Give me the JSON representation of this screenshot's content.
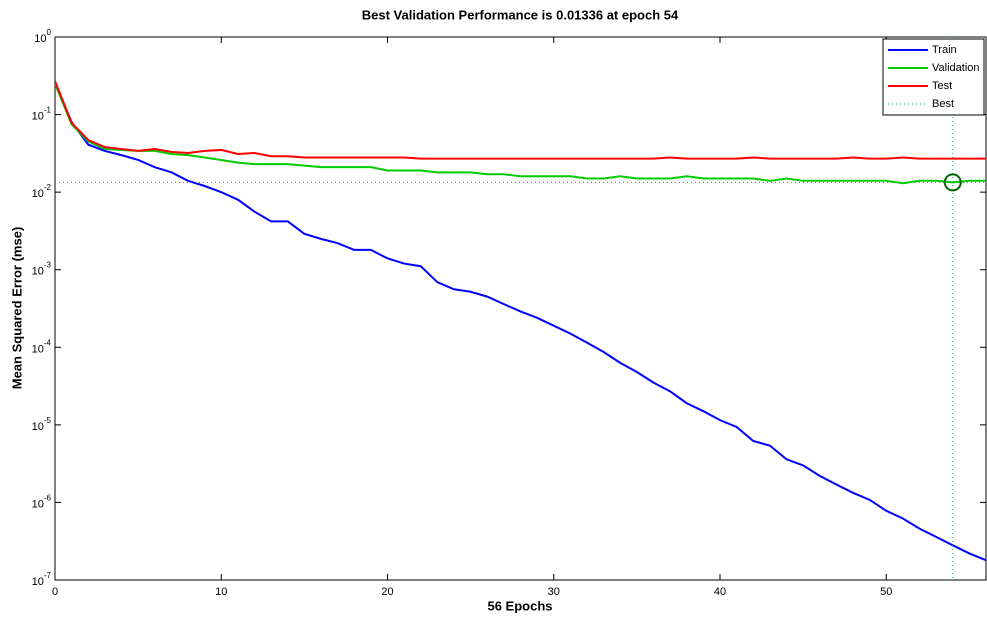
{
  "chart_data": {
    "type": "line",
    "title": "Best Validation Performance is 0.01336 at epoch 54",
    "x_label": "56 Epochs",
    "y_label": "Mean Squared Error  (mse)",
    "log_y": true,
    "legend": "upper right",
    "xlim": [
      0,
      56
    ],
    "ylim": [
      1e-07,
      1
    ],
    "xticks": [
      0,
      10,
      20,
      30,
      40,
      50
    ],
    "yticks": [
      {
        "value": 1e-07,
        "label": "10^-7"
      },
      {
        "value": 1e-06,
        "label": "10^-6"
      },
      {
        "value": 1e-05,
        "label": "10^-5"
      },
      {
        "value": 0.0001,
        "label": "10^-4"
      },
      {
        "value": 0.001,
        "label": "10^-3"
      },
      {
        "value": 0.01,
        "label": "10^-2"
      },
      {
        "value": 0.1,
        "label": "10^-1"
      },
      {
        "value": 1,
        "label": "10^0"
      }
    ],
    "x": [
      0,
      1,
      2,
      3,
      4,
      5,
      6,
      7,
      8,
      9,
      10,
      11,
      12,
      13,
      14,
      15,
      16,
      17,
      18,
      19,
      20,
      21,
      22,
      23,
      24,
      25,
      26,
      27,
      28,
      29,
      30,
      31,
      32,
      33,
      34,
      35,
      36,
      37,
      38,
      39,
      40,
      41,
      42,
      43,
      44,
      45,
      46,
      47,
      48,
      49,
      50,
      51,
      52,
      53,
      54,
      55,
      56
    ],
    "series": [
      {
        "name": "Train",
        "color": "#0000ff",
        "values": [
          0.26,
          0.08,
          0.041,
          0.034,
          0.03,
          0.026,
          0.021,
          0.018,
          0.014,
          0.012,
          0.01,
          0.008,
          0.0056,
          0.0042,
          0.0042,
          0.0029,
          0.0025,
          0.0022,
          0.0018,
          0.0018,
          0.0014,
          0.0012,
          0.00111,
          0.00069,
          0.00056,
          0.00052,
          0.00045,
          0.00036,
          0.00029,
          0.00024,
          0.00019,
          0.00015,
          0.000115,
          8.7e-05,
          6.3e-05,
          4.8e-05,
          3.5e-05,
          2.7e-05,
          1.9e-05,
          1.5e-05,
          1.15e-05,
          9.4e-06,
          6.2e-06,
          5.4e-06,
          3.6e-06,
          3e-06,
          2.2e-06,
          1.7e-06,
          1.33e-06,
          1.08e-06,
          7.8e-07,
          6.2e-07,
          4.6e-07,
          3.6e-07,
          2.8e-07,
          2.2e-07,
          1.8e-07
        ]
      },
      {
        "name": "Validation",
        "color": "#00cc00",
        "values": [
          0.25,
          0.075,
          0.045,
          0.036,
          0.035,
          0.034,
          0.034,
          0.031,
          0.03,
          0.028,
          0.026,
          0.024,
          0.023,
          0.023,
          0.023,
          0.022,
          0.021,
          0.021,
          0.021,
          0.021,
          0.019,
          0.019,
          0.019,
          0.018,
          0.018,
          0.018,
          0.017,
          0.017,
          0.016,
          0.016,
          0.016,
          0.016,
          0.015,
          0.015,
          0.016,
          0.015,
          0.015,
          0.015,
          0.016,
          0.015,
          0.015,
          0.015,
          0.015,
          0.014,
          0.015,
          0.014,
          0.014,
          0.014,
          0.014,
          0.014,
          0.014,
          0.013,
          0.014,
          0.014,
          0.01336,
          0.014,
          0.014
        ]
      },
      {
        "name": "Test",
        "color": "#ff0000",
        "values": [
          0.27,
          0.078,
          0.047,
          0.038,
          0.036,
          0.034,
          0.036,
          0.033,
          0.032,
          0.034,
          0.035,
          0.031,
          0.032,
          0.029,
          0.029,
          0.028,
          0.028,
          0.028,
          0.028,
          0.028,
          0.028,
          0.028,
          0.027,
          0.027,
          0.027,
          0.027,
          0.027,
          0.027,
          0.027,
          0.027,
          0.027,
          0.027,
          0.027,
          0.027,
          0.027,
          0.027,
          0.027,
          0.028,
          0.027,
          0.027,
          0.027,
          0.027,
          0.028,
          0.027,
          0.027,
          0.027,
          0.027,
          0.027,
          0.028,
          0.027,
          0.027,
          0.028,
          0.027,
          0.027,
          0.027,
          0.027,
          0.027
        ]
      }
    ],
    "best": {
      "name": "Best",
      "color": "#00aa66",
      "epoch": 54,
      "value": 0.01336
    }
  }
}
